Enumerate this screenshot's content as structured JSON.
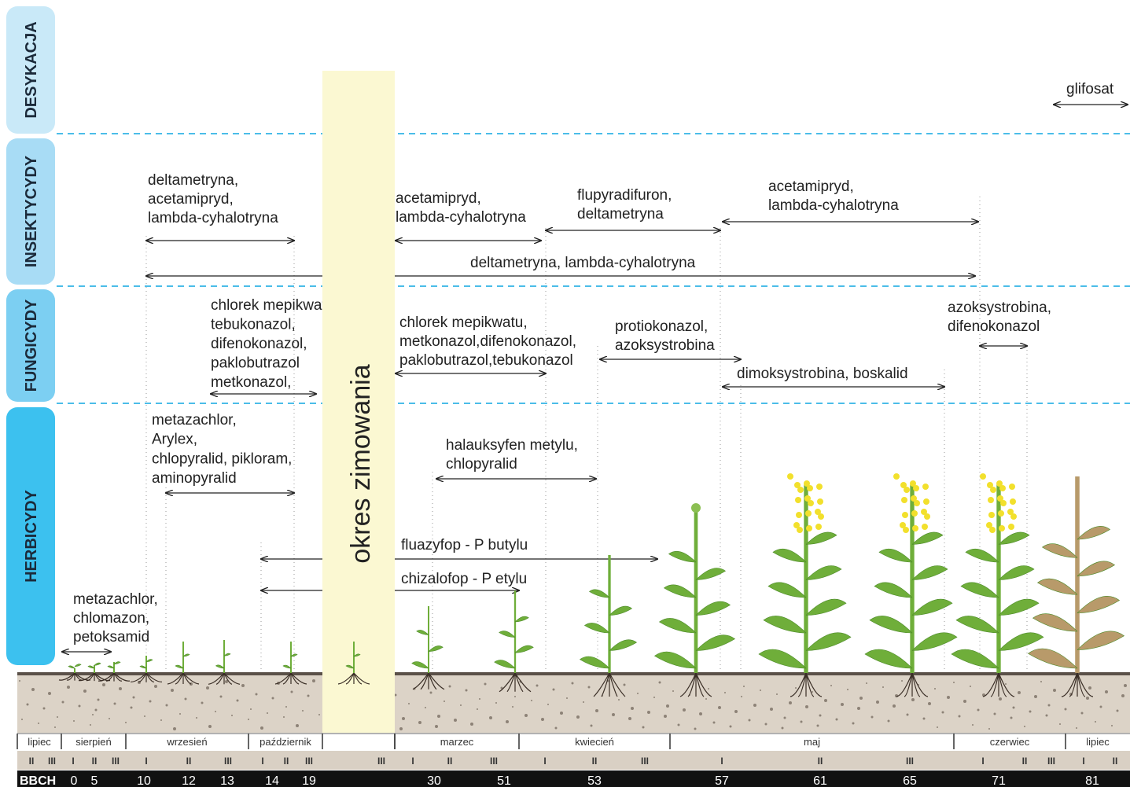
{
  "categories": [
    "DESYKACJA",
    "INSEKTYCYDY",
    "FUNGICYDY",
    "HERBICYDY"
  ],
  "overwintering": "okres zimowania",
  "treatments": [
    {
      "lines": [
        "glifosat"
      ]
    },
    {
      "lines": [
        "deltametryna,",
        "acetamipryd,",
        "lambda-cyhalotryna"
      ]
    },
    {
      "lines": [
        "acetamipryd,",
        "lambda-cyhalotryna"
      ]
    },
    {
      "lines": [
        "flupyradifuron,",
        "deltametryna"
      ]
    },
    {
      "lines": [
        "acetamipryd,",
        "lambda-cyhalotryna"
      ]
    },
    {
      "lines": [
        "deltametryna, lambda-cyhalotryna"
      ]
    },
    {
      "lines": [
        "chlorek mepikwatu,",
        "tebukonazol,",
        "difenokonazol,",
        "paklobutrazol",
        "metkonazol,"
      ]
    },
    {
      "lines": [
        "chlorek mepikwatu,",
        "metkonazol,difenokonazol,",
        "paklobutrazol,tebukonazol"
      ]
    },
    {
      "lines": [
        "protiokonazol,",
        "azoksystrobina"
      ]
    },
    {
      "lines": [
        "dimoksystrobina, boskalid"
      ]
    },
    {
      "lines": [
        "azoksystrobina,",
        "difenokonazol"
      ]
    },
    {
      "lines": [
        "metazachlor,",
        "Arylex,",
        "chlopyralid, pikloram,",
        "aminopyralid"
      ]
    },
    {
      "lines": [
        "halauksyfen metylu,",
        "chlopyralid"
      ]
    },
    {
      "lines": [
        "fluazyfop - P butylu"
      ]
    },
    {
      "lines": [
        "chizalofop - P etylu"
      ]
    },
    {
      "lines": [
        "metazachlor,",
        "chlomazon,",
        "petoksamid"
      ]
    }
  ],
  "months": [
    "lipiec",
    "sierpień",
    "wrzesień",
    "październik",
    "marzec",
    "kwiecień",
    "maj",
    "czerwiec",
    "lipiec"
  ],
  "decades": [
    "II",
    "III",
    "I",
    "II",
    "III",
    "I",
    "II",
    "III",
    "I",
    "II",
    "III",
    "III",
    "I",
    "II",
    "III",
    "I",
    "II",
    "III",
    "I",
    "II",
    "III",
    "I",
    "II",
    "III",
    "I",
    "II"
  ],
  "bbch_label": "BBCH",
  "bbch": [
    0,
    5,
    10,
    12,
    13,
    14,
    19,
    30,
    51,
    53,
    57,
    61,
    65,
    71,
    81
  ]
}
